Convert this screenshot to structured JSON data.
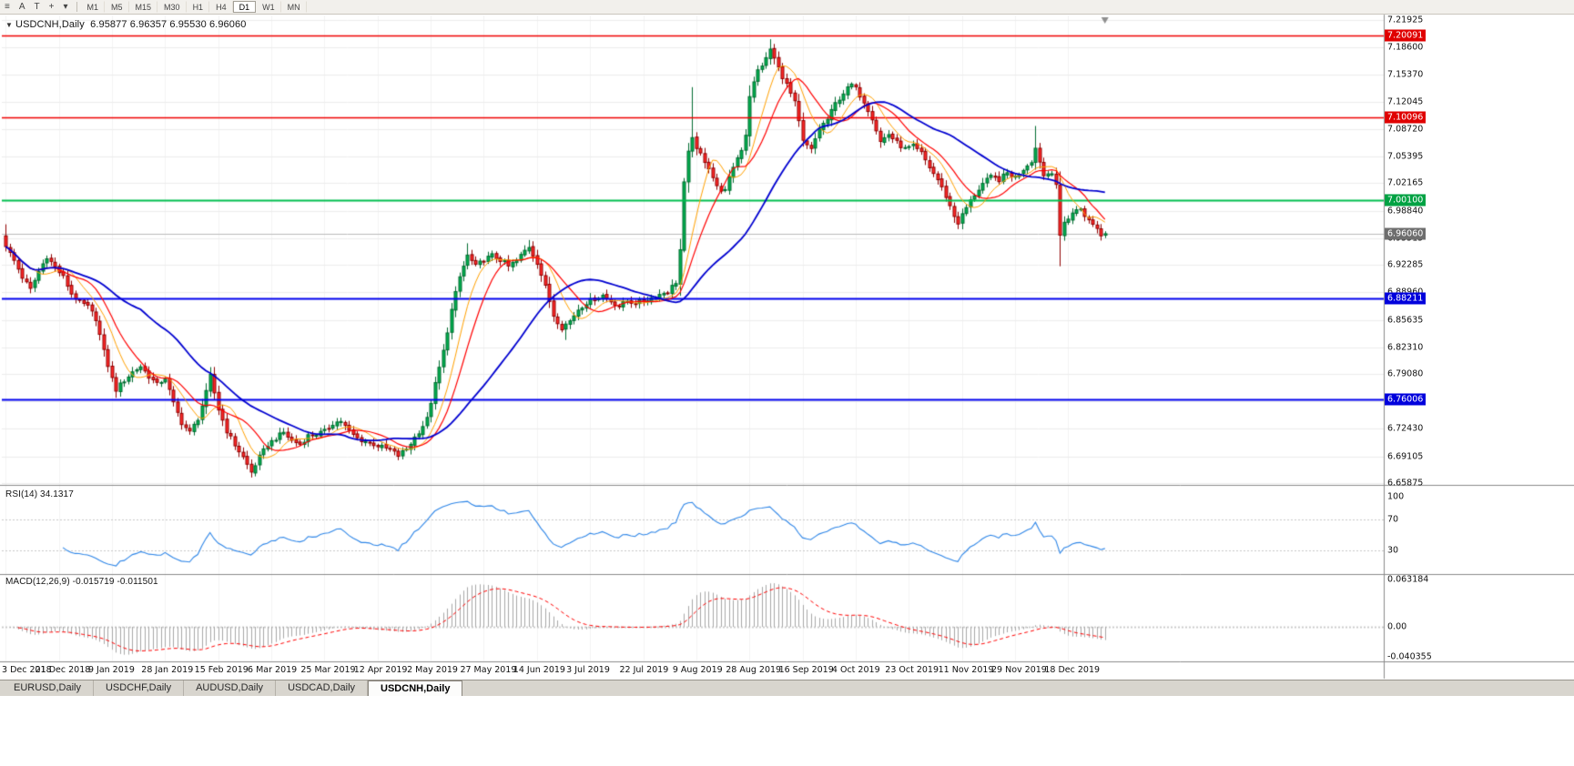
{
  "toolbar": {
    "tools": [
      {
        "name": "chart-menu-icon",
        "glyph": "≡"
      },
      {
        "name": "annotation-a-icon",
        "glyph": "A"
      },
      {
        "name": "text-tool-icon",
        "glyph": "T"
      },
      {
        "name": "crosshair-tool-icon",
        "glyph": "+"
      },
      {
        "name": "tools-dropdown-icon",
        "glyph": "▾"
      }
    ],
    "timeframes": [
      "M1",
      "M5",
      "M15",
      "M30",
      "H1",
      "H4",
      "D1",
      "W1",
      "MN"
    ],
    "active_timeframe": "D1"
  },
  "chart": {
    "marker_glyph": "▼",
    "symbol": "USDCNH,Daily",
    "ohlc_text": "6.95877 6.96357 6.95530 6.96060"
  },
  "chart_data": {
    "type": "candlestick",
    "title": "USDCNH,Daily",
    "timeframe": "D1",
    "num_candles": 270,
    "price_range": {
      "top": 7.21925,
      "bottom": 6.65875
    },
    "y_axis_ticks": [
      "7.21925",
      "7.18600",
      "7.15370",
      "7.12045",
      "7.08720",
      "7.05395",
      "7.02165",
      "6.98840",
      "6.95515",
      "6.92285",
      "6.88960",
      "6.85635",
      "6.82310",
      "6.79080",
      "6.75755",
      "6.72430",
      "6.69105",
      "6.65875"
    ],
    "x_labels": [
      "3 Dec 2018",
      "21 Dec 2018",
      "9 Jan 2019",
      "28 Jan 2019",
      "15 Feb 2019",
      "6 Mar 2019",
      "25 Mar 2019",
      "12 Apr 2019",
      "2 May 2019",
      "27 May 2019",
      "14 Jun 2019",
      "3 Jul 2019",
      "22 Jul 2019",
      "9 Aug 2019",
      "28 Aug 2019",
      "16 Sep 2019",
      "4 Oct 2019",
      "23 Oct 2019",
      "11 Nov 2019",
      "29 Nov 2019",
      "18 Dec 2019"
    ],
    "x_label_candle_stride": 13,
    "horizontal_lines": [
      {
        "name": "resistance-line-upper",
        "price": 7.20091,
        "color": "#F00000",
        "width": 1.4,
        "tag": "7.20091",
        "tag_bg": "#E00000"
      },
      {
        "name": "resistance-line-lower",
        "price": 7.10096,
        "color": "#F00000",
        "width": 1.4,
        "tag": "7.10096",
        "tag_bg": "#E00000"
      },
      {
        "name": "pivot-line-green",
        "price": 7.001,
        "color": "#00BE4E",
        "width": 2,
        "tag": "7.00100",
        "tag_bg": "#00A243"
      },
      {
        "name": "support-line-blue-upper",
        "price": 6.88211,
        "color": "#0000EE",
        "width": 2,
        "tag": "6.88211",
        "tag_bg": "#0000DC"
      },
      {
        "name": "support-line-blue-lower",
        "price": 6.76006,
        "color": "#0000EE",
        "width": 2,
        "tag": "6.76006",
        "tag_bg": "#0000DC"
      }
    ],
    "current_price": {
      "value": 6.9606,
      "tag": "6.96060",
      "line_color": "#BCBCBC",
      "tag_bg": "#6E6E6E"
    },
    "last_candle": {
      "open": 6.95877,
      "high": 6.96357,
      "low": 6.9553,
      "close": 6.9606
    },
    "candle_colors": {
      "up_fill": "#00B050",
      "up_stroke": "#006B2F",
      "down_fill": "#FF2A2A",
      "down_stroke": "#8F0000"
    },
    "close_path_anchors": [
      [
        0,
        6.945
      ],
      [
        2,
        6.928
      ],
      [
        4,
        6.908
      ],
      [
        6,
        6.893
      ],
      [
        8,
        6.915
      ],
      [
        10,
        6.933
      ],
      [
        12,
        6.92
      ],
      [
        14,
        6.908
      ],
      [
        16,
        6.888
      ],
      [
        18,
        6.878
      ],
      [
        20,
        6.872
      ],
      [
        22,
        6.858
      ],
      [
        24,
        6.818
      ],
      [
        26,
        6.785
      ],
      [
        27,
        6.772
      ],
      [
        29,
        6.783
      ],
      [
        31,
        6.793
      ],
      [
        33,
        6.8
      ],
      [
        35,
        6.788
      ],
      [
        37,
        6.778
      ],
      [
        39,
        6.786
      ],
      [
        41,
        6.755
      ],
      [
        43,
        6.732
      ],
      [
        45,
        6.72
      ],
      [
        47,
        6.737
      ],
      [
        49,
        6.768
      ],
      [
        50,
        6.788
      ],
      [
        52,
        6.748
      ],
      [
        54,
        6.722
      ],
      [
        56,
        6.705
      ],
      [
        58,
        6.69
      ],
      [
        60,
        6.672
      ],
      [
        62,
        6.69
      ],
      [
        64,
        6.705
      ],
      [
        66,
        6.713
      ],
      [
        68,
        6.72
      ],
      [
        70,
        6.71
      ],
      [
        72,
        6.706
      ],
      [
        74,
        6.716
      ],
      [
        76,
        6.718
      ],
      [
        78,
        6.721
      ],
      [
        80,
        6.731
      ],
      [
        82,
        6.734
      ],
      [
        84,
        6.721
      ],
      [
        86,
        6.713
      ],
      [
        88,
        6.709
      ],
      [
        90,
        6.706
      ],
      [
        92,
        6.702
      ],
      [
        94,
        6.699
      ],
      [
        96,
        6.692
      ],
      [
        98,
        6.7
      ],
      [
        100,
        6.714
      ],
      [
        102,
        6.728
      ],
      [
        103,
        6.736
      ],
      [
        105,
        6.778
      ],
      [
        107,
        6.818
      ],
      [
        109,
        6.868
      ],
      [
        111,
        6.908
      ],
      [
        113,
        6.934
      ],
      [
        115,
        6.921
      ],
      [
        117,
        6.929
      ],
      [
        119,
        6.934
      ],
      [
        121,
        6.929
      ],
      [
        123,
        6.921
      ],
      [
        125,
        6.928
      ],
      [
        127,
        6.94
      ],
      [
        128,
        6.945
      ],
      [
        130,
        6.926
      ],
      [
        132,
        6.896
      ],
      [
        134,
        6.862
      ],
      [
        136,
        6.847
      ],
      [
        138,
        6.855
      ],
      [
        140,
        6.869
      ],
      [
        142,
        6.877
      ],
      [
        144,
        6.882
      ],
      [
        146,
        6.886
      ],
      [
        148,
        6.879
      ],
      [
        150,
        6.873
      ],
      [
        152,
        6.879
      ],
      [
        154,
        6.877
      ],
      [
        156,
        6.879
      ],
      [
        158,
        6.883
      ],
      [
        160,
        6.887
      ],
      [
        162,
        6.891
      ],
      [
        164,
        6.902
      ],
      [
        165,
        6.941
      ],
      [
        166,
        7.021
      ],
      [
        167,
        7.058
      ],
      [
        168,
        7.079
      ],
      [
        169,
        7.061
      ],
      [
        170,
        7.057
      ],
      [
        172,
        7.041
      ],
      [
        174,
        7.017
      ],
      [
        176,
        7.012
      ],
      [
        178,
        7.042
      ],
      [
        180,
        7.063
      ],
      [
        181,
        7.081
      ],
      [
        182,
        7.128
      ],
      [
        184,
        7.158
      ],
      [
        186,
        7.172
      ],
      [
        187,
        7.184
      ],
      [
        189,
        7.161
      ],
      [
        191,
        7.141
      ],
      [
        193,
        7.119
      ],
      [
        195,
        7.072
      ],
      [
        197,
        7.062
      ],
      [
        199,
        7.088
      ],
      [
        201,
        7.099
      ],
      [
        203,
        7.118
      ],
      [
        205,
        7.131
      ],
      [
        207,
        7.141
      ],
      [
        208,
        7.136
      ],
      [
        210,
        7.121
      ],
      [
        212,
        7.101
      ],
      [
        214,
        7.072
      ],
      [
        216,
        7.081
      ],
      [
        218,
        7.071
      ],
      [
        220,
        7.063
      ],
      [
        222,
        7.066
      ],
      [
        224,
        7.058
      ],
      [
        226,
        7.041
      ],
      [
        228,
        7.026
      ],
      [
        230,
        7.006
      ],
      [
        232,
        6.982
      ],
      [
        233,
        6.974
      ],
      [
        235,
        6.992
      ],
      [
        237,
        7.008
      ],
      [
        239,
        7.021
      ],
      [
        241,
        7.029
      ],
      [
        243,
        7.026
      ],
      [
        245,
        7.034
      ],
      [
        247,
        7.029
      ],
      [
        249,
        7.039
      ],
      [
        251,
        7.049
      ],
      [
        252,
        7.064
      ],
      [
        253,
        7.049
      ],
      [
        254,
        7.031
      ],
      [
        256,
        7.036
      ],
      [
        257,
        7.021
      ],
      [
        258,
        6.956
      ],
      [
        259,
        6.974
      ],
      [
        261,
        6.986
      ],
      [
        263,
        6.991
      ],
      [
        265,
        6.976
      ],
      [
        267,
        6.967
      ],
      [
        268,
        6.958
      ],
      [
        269,
        6.9606
      ]
    ],
    "wick_overrides": {
      "0": [
        6.972,
        null
      ],
      "60": [
        null,
        6.6655
      ],
      "113": [
        6.949,
        null
      ],
      "128": [
        6.953,
        null
      ],
      "137": [
        null,
        6.832
      ],
      "166": [
        7.028,
        6.938
      ],
      "168": [
        7.138,
        null
      ],
      "187": [
        7.196,
        null
      ],
      "252": [
        7.091,
        null
      ],
      "258": [
        null,
        6.9212
      ]
    },
    "moving_averages": [
      {
        "name": "ma-fast",
        "period": 8,
        "color": "#FFA000",
        "width": 1
      },
      {
        "name": "ma-mid",
        "period": 13,
        "color": "#FF0000",
        "width": 1.2
      },
      {
        "name": "ma-slow",
        "period": 34,
        "color": "#0000D0",
        "width": 1.8
      }
    ],
    "rsi": {
      "label": "RSI(14) 34.1317",
      "period": 14,
      "last_value": 34.1317,
      "levels": [
        "100",
        "70",
        "30"
      ],
      "level_values": [
        100,
        70,
        30
      ],
      "line_color": "#2E86E8"
    },
    "macd": {
      "label": "MACD(12,26,9) -0.015719 -0.011501",
      "fast": 12,
      "slow": 26,
      "signal_period": 9,
      "main_value": -0.015719,
      "signal_value": -0.011501,
      "axis_labels": [
        "0.063184",
        "0.00",
        "-0.040355"
      ],
      "axis_values": [
        0.063184,
        0,
        -0.040355
      ],
      "hist_color": "#A8A8A8",
      "signal_color": "#FF0000"
    }
  },
  "bottom_tabs": [
    {
      "label": "EURUSD,Daily",
      "active": false
    },
    {
      "label": "USDCHF,Daily",
      "active": false
    },
    {
      "label": "AUDUSD,Daily",
      "active": false
    },
    {
      "label": "USDCAD,Daily",
      "active": false
    },
    {
      "label": "USDCNH,Daily",
      "active": true
    }
  ]
}
